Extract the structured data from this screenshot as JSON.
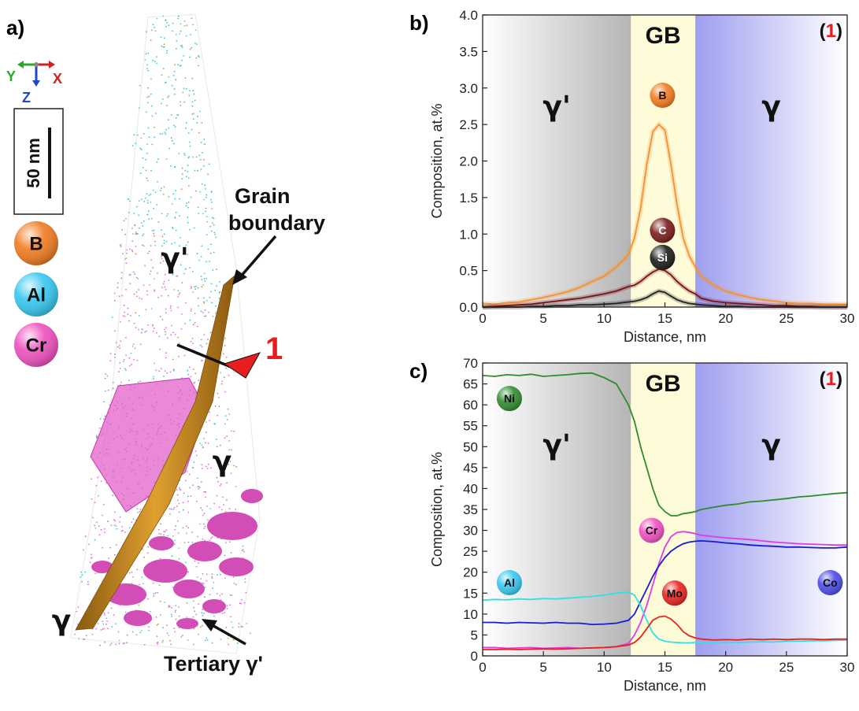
{
  "panels": {
    "a": "a)",
    "b": "b)",
    "c": "c)"
  },
  "reconstruction": {
    "axes": {
      "y": "Y",
      "x": "X",
      "z": "Z"
    },
    "scale_bar": "50 nm",
    "legend": [
      {
        "label": "B",
        "color": "#f07a1e"
      },
      {
        "label": "Al",
        "color": "#35c7f0"
      },
      {
        "label": "Cr",
        "color": "#ee4fbf"
      }
    ],
    "labels": {
      "gamma_prime_top": "γ'",
      "gamma_right": "γ",
      "gamma_left": "γ",
      "grain_boundary_line1": "Grain",
      "grain_boundary_line2": "boundary",
      "profile_number": "1",
      "tertiary": "Tertiary γ'"
    }
  },
  "colors": {
    "B": "#f39233",
    "C": "#7a1416",
    "Si": "#222222",
    "Ni": "#2e8b2e",
    "Cr": "#e03be0",
    "Co": "#1a1adb",
    "Al": "#33e0e0",
    "Mo": "#e8221e",
    "gb_band": "#fdfbd8",
    "gamma_band": "#8e8ee8",
    "gamma_prime_band": "#a8a8a8",
    "accent_red": "#e81d1d"
  },
  "chart_data": [
    {
      "panel": "b)",
      "type": "line",
      "xlabel": "Distance, nm",
      "ylabel": "Composition, at.%",
      "xlim": [
        0,
        30
      ],
      "ylim": [
        0,
        4.0
      ],
      "xticks": [
        "0",
        "5",
        "10",
        "15",
        "20",
        "25",
        "30"
      ],
      "yticks": [
        "0.0",
        "0.5",
        "1.0",
        "1.5",
        "2.0",
        "2.5",
        "3.0",
        "3.5",
        "4.0"
      ],
      "regions": [
        {
          "label": "γ'",
          "from": 0,
          "to": 12.2
        },
        {
          "label": "GB",
          "from": 12.2,
          "to": 17.5
        },
        {
          "label": "γ",
          "from": 17.5,
          "to": 30
        }
      ],
      "profile_label": "(1)",
      "x": [
        0,
        1,
        2,
        3,
        4,
        5,
        6,
        7,
        8,
        9,
        10,
        11,
        12,
        12.5,
        13,
        13.5,
        14,
        14.5,
        15,
        15.5,
        16,
        16.5,
        17,
        17.5,
        18,
        19,
        20,
        21,
        22,
        23,
        24,
        25,
        26,
        27,
        28,
        29,
        30
      ],
      "series": [
        {
          "name": "B",
          "values": [
            0.05,
            0.04,
            0.06,
            0.07,
            0.1,
            0.13,
            0.17,
            0.21,
            0.27,
            0.35,
            0.42,
            0.55,
            0.72,
            0.95,
            1.35,
            1.95,
            2.4,
            2.5,
            2.42,
            1.95,
            1.4,
            0.95,
            0.7,
            0.55,
            0.42,
            0.3,
            0.22,
            0.17,
            0.13,
            0.1,
            0.08,
            0.06,
            0.05,
            0.05,
            0.04,
            0.04,
            0.04
          ]
        },
        {
          "name": "C",
          "values": [
            0.0,
            0.01,
            0.02,
            0.03,
            0.04,
            0.06,
            0.08,
            0.1,
            0.12,
            0.15,
            0.18,
            0.22,
            0.28,
            0.3,
            0.35,
            0.42,
            0.48,
            0.52,
            0.5,
            0.44,
            0.35,
            0.28,
            0.22,
            0.18,
            0.12,
            0.08,
            0.06,
            0.05,
            0.04,
            0.03,
            0.02,
            0.02,
            0.01,
            0.01,
            0.0,
            0.0,
            0.0
          ]
        },
        {
          "name": "Si",
          "values": [
            0.0,
            0.0,
            0.0,
            0.0,
            0.01,
            0.01,
            0.02,
            0.02,
            0.03,
            0.03,
            0.04,
            0.05,
            0.07,
            0.08,
            0.1,
            0.13,
            0.18,
            0.22,
            0.2,
            0.15,
            0.1,
            0.07,
            0.05,
            0.04,
            0.03,
            0.02,
            0.01,
            0.01,
            0.0,
            0.0,
            0.0,
            0.0,
            0.0,
            0.0,
            0.0,
            0.0,
            0.0
          ]
        }
      ],
      "series_labels": [
        {
          "name": "B",
          "x": 14.8,
          "y": 2.9
        },
        {
          "name": "C",
          "x": 14.8,
          "y": 1.05
        },
        {
          "name": "Si",
          "x": 14.8,
          "y": 0.68
        }
      ]
    },
    {
      "panel": "c)",
      "type": "line",
      "xlabel": "Distance, nm",
      "ylabel": "Composition, at.%",
      "xlim": [
        0,
        30
      ],
      "ylim": [
        0,
        70
      ],
      "xticks": [
        "0",
        "5",
        "10",
        "15",
        "20",
        "25",
        "30"
      ],
      "yticks": [
        "0",
        "5",
        "10",
        "15",
        "20",
        "25",
        "30",
        "35",
        "40",
        "45",
        "50",
        "55",
        "60",
        "65",
        "70"
      ],
      "regions": [
        {
          "label": "γ'",
          "from": 0,
          "to": 12.2
        },
        {
          "label": "GB",
          "from": 12.2,
          "to": 17.5
        },
        {
          "label": "γ",
          "from": 17.5,
          "to": 30
        }
      ],
      "profile_label": "(1)",
      "x": [
        0,
        1,
        2,
        3,
        4,
        5,
        6,
        7,
        8,
        9,
        10,
        11,
        12,
        12.5,
        13,
        13.5,
        14,
        14.5,
        15,
        15.5,
        16,
        16.5,
        17,
        17.5,
        18,
        19,
        20,
        21,
        22,
        23,
        24,
        25,
        26,
        27,
        28,
        29,
        30
      ],
      "series": [
        {
          "name": "Ni",
          "values": [
            67,
            66.8,
            67.2,
            67,
            67.3,
            66.8,
            67,
            67.2,
            67.5,
            67.6,
            66.5,
            65,
            60,
            56,
            50,
            45,
            40,
            36,
            34.5,
            33.5,
            33.5,
            34,
            34.2,
            34.5,
            35,
            35.5,
            36,
            36.3,
            36.8,
            37,
            37.3,
            37.6,
            38,
            38.2,
            38.5,
            38.8,
            39
          ]
        },
        {
          "name": "Cr",
          "values": [
            2,
            2,
            1.8,
            1.9,
            2,
            1.8,
            1.9,
            2,
            1.8,
            1.9,
            2,
            2.2,
            3,
            5,
            8,
            12,
            17,
            22,
            26,
            28.5,
            29.5,
            29.7,
            29.5,
            29.2,
            28.8,
            28.5,
            28.2,
            28,
            27.8,
            27.5,
            27.2,
            27,
            26.8,
            26.7,
            26.6,
            26.5,
            26.5
          ]
        },
        {
          "name": "Co",
          "values": [
            8,
            8,
            7.8,
            8,
            7.9,
            7.8,
            8,
            7.8,
            7.8,
            7.5,
            7.6,
            7.8,
            8.5,
            10,
            13,
            16,
            19,
            21.5,
            23.5,
            25,
            26,
            26.8,
            27.2,
            27.4,
            27.5,
            27.3,
            27,
            26.8,
            26.5,
            26.3,
            26.2,
            26,
            26,
            25.9,
            25.8,
            25.8,
            26
          ]
        },
        {
          "name": "Al",
          "values": [
            13.3,
            13.5,
            13.4,
            13.6,
            13.5,
            13.7,
            13.6,
            13.8,
            14,
            14.2,
            14.5,
            15,
            15.2,
            14.5,
            12,
            8.5,
            5.5,
            4,
            3.5,
            3.3,
            3.2,
            3.1,
            3.1,
            3.2,
            3.2,
            3.2,
            3.3,
            3.2,
            3.3,
            3.4,
            3.3,
            3.5,
            3.5,
            3.6,
            3.6,
            3.7,
            3.8
          ]
        },
        {
          "name": "Mo",
          "values": [
            1.5,
            1.5,
            1.6,
            1.5,
            1.6,
            1.7,
            1.6,
            1.7,
            1.8,
            1.9,
            2,
            2.2,
            2.6,
            3.2,
            4.5,
            6.5,
            8.5,
            9.3,
            9.5,
            8.8,
            7.5,
            5.8,
            4.8,
            4.3,
            4,
            3.8,
            3.9,
            3.8,
            4,
            3.9,
            4,
            3.9,
            4,
            4,
            3.9,
            4,
            4
          ]
        }
      ],
      "series_labels": [
        {
          "name": "Ni",
          "x": 2.2,
          "y": 61.5
        },
        {
          "name": "Cr",
          "x": 13.9,
          "y": 30
        },
        {
          "name": "Co",
          "x": 28.6,
          "y": 17.5
        },
        {
          "name": "Al",
          "x": 2.2,
          "y": 17.5
        },
        {
          "name": "Mo",
          "x": 15.8,
          "y": 15
        }
      ]
    }
  ]
}
